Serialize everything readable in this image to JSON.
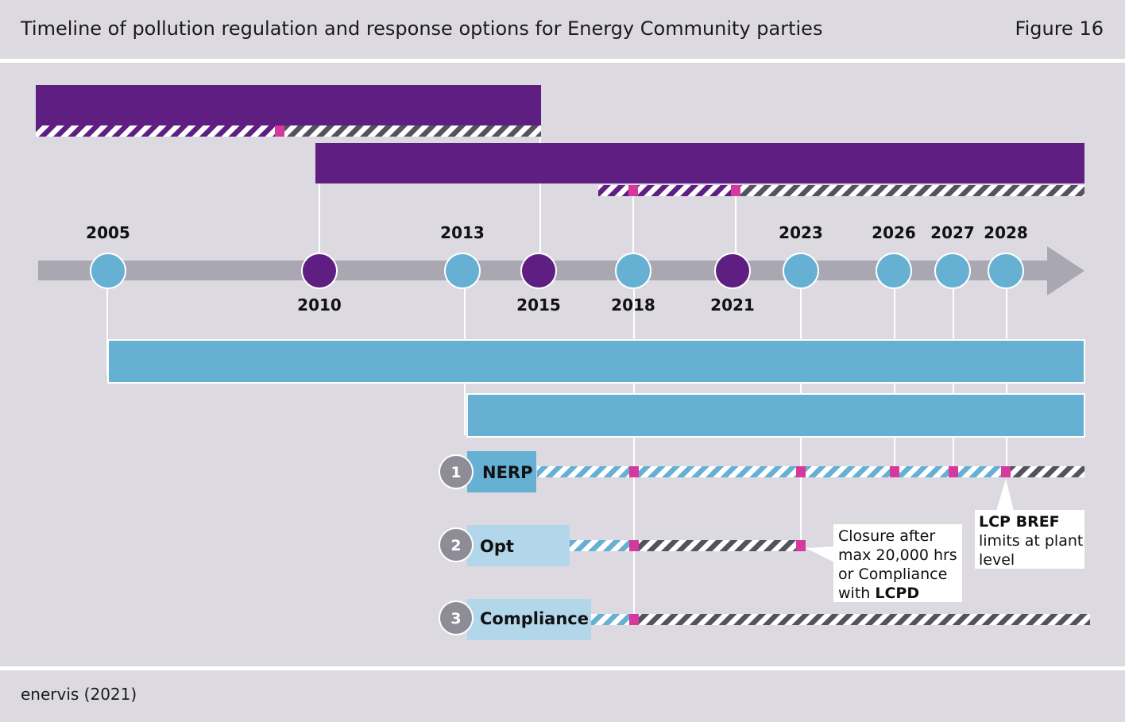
{
  "header": {
    "title": "Timeline of pollution regulation and response options for Energy Community parties",
    "figure": "Figure 16"
  },
  "footer": {
    "source": "enervis (2021)"
  },
  "colors": {
    "purple": "#5e1e82",
    "blue": "#66b0d4",
    "light_blue": "#b2d7ea",
    "grey_axis": "#a9a8b2",
    "magenta": "#d6399d",
    "dark_stripe": "#55525f",
    "circle_grey": "#8e8c96"
  },
  "timeline": {
    "events": [
      {
        "year": "2005",
        "color": "blue",
        "label_pos": "above"
      },
      {
        "year": "2010",
        "color": "purple",
        "label_pos": "below"
      },
      {
        "year": "2013",
        "color": "blue",
        "label_pos": "above"
      },
      {
        "year": "2015",
        "color": "purple",
        "label_pos": "below"
      },
      {
        "year": "2018",
        "color": "blue",
        "label_pos": "below"
      },
      {
        "year": "2021",
        "color": "purple",
        "label_pos": "below"
      },
      {
        "year": "2023",
        "color": "blue",
        "label_pos": "above"
      },
      {
        "year": "2026",
        "color": "blue",
        "label_pos": "above"
      },
      {
        "year": "2027",
        "color": "blue",
        "label_pos": "above"
      },
      {
        "year": "2028",
        "color": "blue",
        "label_pos": "above"
      }
    ]
  },
  "options": [
    {
      "number": "1",
      "label": "NERP"
    },
    {
      "number": "2",
      "label": "Opt"
    },
    {
      "number": "3",
      "label": "Compliance"
    }
  ],
  "callouts": {
    "closure": {
      "line1": "Closure after",
      "line2": "max 20,000 hrs",
      "line3": "or Compliance",
      "line4_prefix": "with ",
      "line4_bold": "LCPD"
    },
    "bref": {
      "line1_bold": "LCP BREF",
      "line2": "limits at plant",
      "line3": "level"
    }
  }
}
